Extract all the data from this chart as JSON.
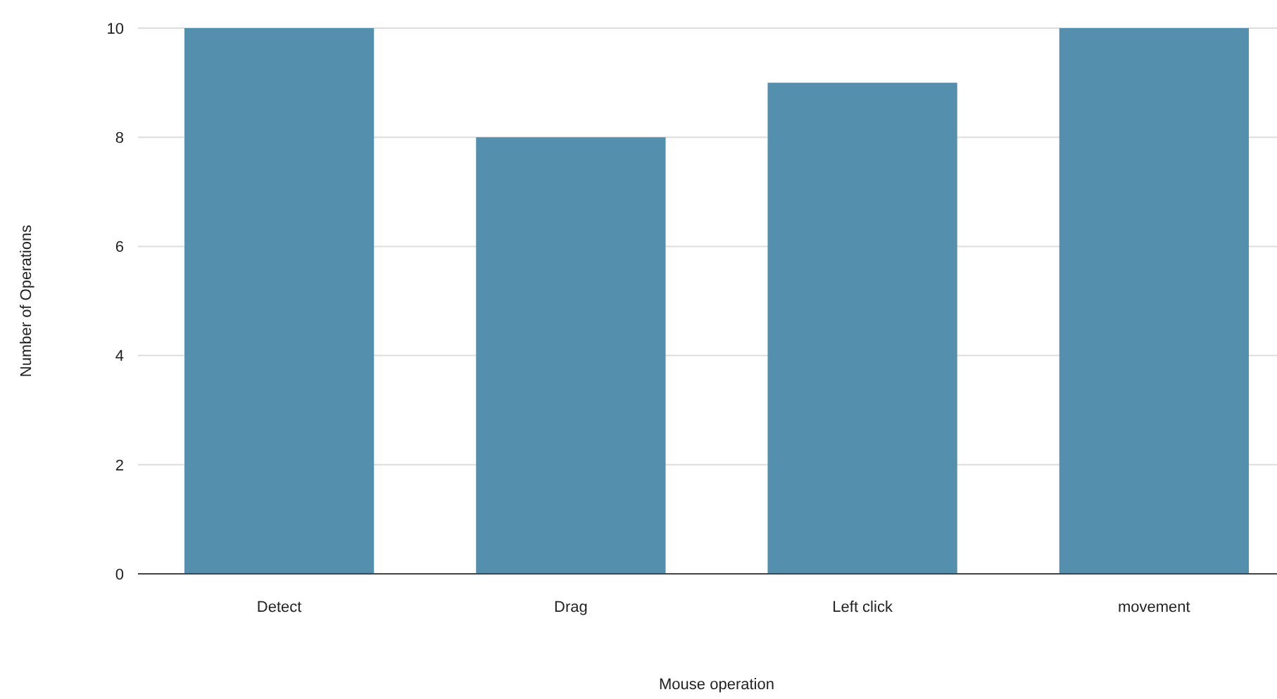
{
  "chart_data": {
    "type": "bar",
    "xlabel": "Mouse operation",
    "ylabel": "Number of Operations",
    "categories": [
      "Detect",
      "Drag",
      "Left click",
      "movement"
    ],
    "values": [
      10,
      8,
      9,
      10
    ],
    "color": "#558fae",
    "ylim": [
      0,
      10
    ],
    "yticks": [
      0,
      2,
      4,
      6,
      8,
      10
    ],
    "grid": "y"
  }
}
